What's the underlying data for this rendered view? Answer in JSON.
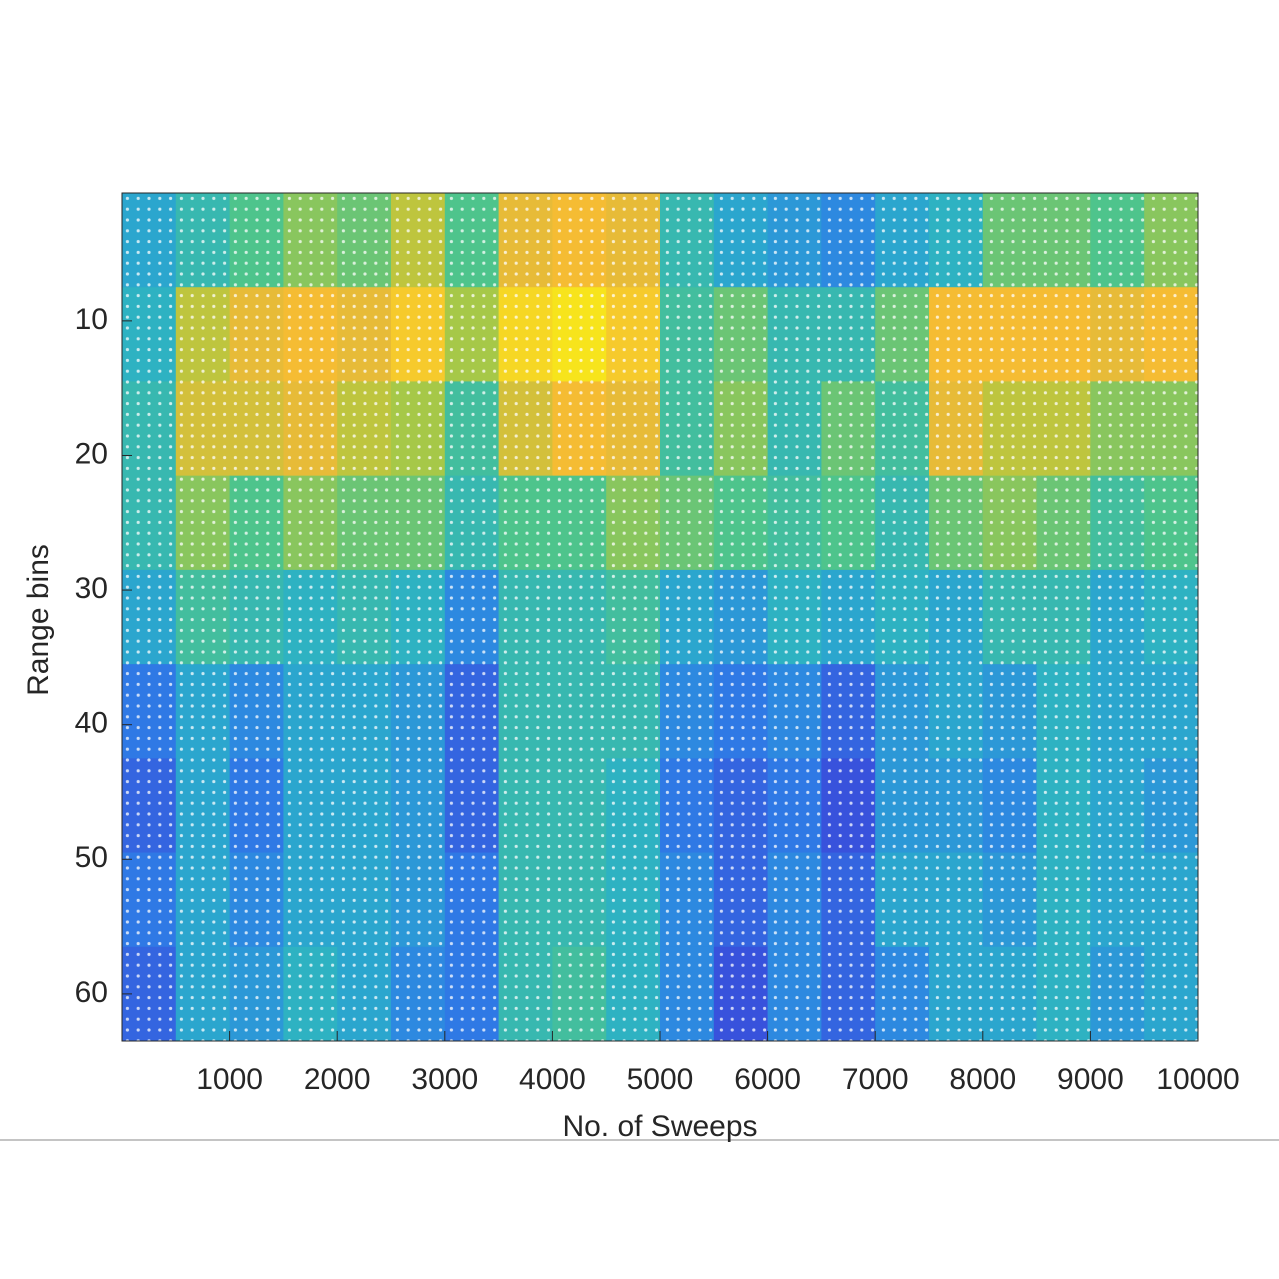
{
  "chart_data": {
    "type": "heatmap",
    "x_label": "No. of Sweeps",
    "y_label": "Range bins",
    "xlim": [
      0,
      10000
    ],
    "ylim": [
      0.5,
      63.5
    ],
    "y_reversed": true,
    "xticks": [
      1000,
      2000,
      3000,
      4000,
      5000,
      6000,
      7000,
      8000,
      9000,
      10000
    ],
    "yticks": [
      10,
      20,
      30,
      40,
      50,
      60
    ],
    "x_edges": [
      0,
      500,
      1000,
      1500,
      2000,
      2500,
      3000,
      3500,
      4000,
      4500,
      5000,
      5500,
      6000,
      6500,
      7000,
      7500,
      8000,
      8500,
      9000,
      9500,
      10000
    ],
    "y_edges": [
      0.5,
      7.5,
      14.5,
      21.5,
      28.5,
      35.5,
      42.5,
      49.5,
      56.5,
      63.5
    ],
    "clim": [
      0,
      1
    ],
    "colormap": [
      "#3c3fd8",
      "#2e7fe6",
      "#2ab0c8",
      "#4ec48c",
      "#b0c840",
      "#f5b836",
      "#f7e41c"
    ],
    "z": [
      [
        0.3,
        0.4,
        0.5,
        0.6,
        0.55,
        0.7,
        0.5,
        0.8,
        0.85,
        0.8,
        0.4,
        0.3,
        0.25,
        0.2,
        0.3,
        0.35,
        0.55,
        0.55,
        0.5,
        0.6
      ],
      [
        0.35,
        0.7,
        0.8,
        0.85,
        0.8,
        0.9,
        0.65,
        0.95,
        1.0,
        0.9,
        0.45,
        0.55,
        0.4,
        0.4,
        0.55,
        0.85,
        0.85,
        0.85,
        0.8,
        0.85
      ],
      [
        0.4,
        0.75,
        0.75,
        0.8,
        0.7,
        0.65,
        0.45,
        0.75,
        0.85,
        0.8,
        0.45,
        0.6,
        0.4,
        0.55,
        0.45,
        0.8,
        0.7,
        0.7,
        0.6,
        0.6
      ],
      [
        0.4,
        0.6,
        0.5,
        0.6,
        0.55,
        0.55,
        0.4,
        0.5,
        0.5,
        0.6,
        0.55,
        0.5,
        0.45,
        0.5,
        0.4,
        0.55,
        0.6,
        0.55,
        0.45,
        0.5
      ],
      [
        0.3,
        0.45,
        0.4,
        0.35,
        0.4,
        0.35,
        0.2,
        0.4,
        0.4,
        0.45,
        0.3,
        0.25,
        0.35,
        0.3,
        0.35,
        0.3,
        0.4,
        0.4,
        0.3,
        0.35
      ],
      [
        0.15,
        0.3,
        0.2,
        0.3,
        0.3,
        0.25,
        0.1,
        0.4,
        0.4,
        0.4,
        0.2,
        0.15,
        0.2,
        0.1,
        0.25,
        0.3,
        0.25,
        0.35,
        0.3,
        0.3
      ],
      [
        0.1,
        0.3,
        0.15,
        0.3,
        0.3,
        0.25,
        0.1,
        0.4,
        0.4,
        0.35,
        0.15,
        0.1,
        0.15,
        0.05,
        0.25,
        0.25,
        0.2,
        0.35,
        0.3,
        0.25
      ],
      [
        0.15,
        0.3,
        0.2,
        0.3,
        0.3,
        0.25,
        0.15,
        0.4,
        0.4,
        0.35,
        0.2,
        0.1,
        0.2,
        0.1,
        0.3,
        0.3,
        0.25,
        0.35,
        0.3,
        0.3
      ],
      [
        0.1,
        0.3,
        0.25,
        0.35,
        0.3,
        0.2,
        0.15,
        0.4,
        0.45,
        0.35,
        0.2,
        0.05,
        0.2,
        0.1,
        0.2,
        0.3,
        0.3,
        0.35,
        0.25,
        0.3
      ]
    ]
  }
}
